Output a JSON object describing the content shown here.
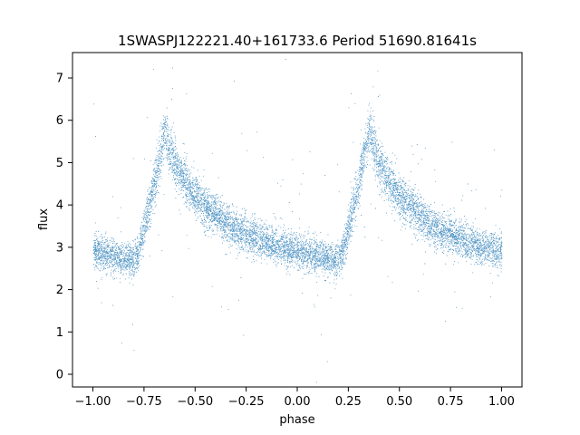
{
  "chart_data": {
    "type": "scatter",
    "title": "1SWASPJ122221.40+161733.6 Period 51690.81641s",
    "xlabel": "phase",
    "ylabel": "flux",
    "xlim": [
      -1.1,
      1.1
    ],
    "ylim": [
      -0.3,
      7.6
    ],
    "xticks": [
      -1.0,
      -0.75,
      -0.5,
      -0.25,
      0.0,
      0.25,
      0.5,
      0.75,
      1.0
    ],
    "xtick_labels": [
      "−1.00",
      "−0.75",
      "−0.50",
      "−0.25",
      "0.00",
      "0.25",
      "0.50",
      "0.75",
      "1.00"
    ],
    "yticks": [
      0,
      1,
      2,
      3,
      4,
      5,
      6,
      7
    ],
    "ytick_labels": [
      "0",
      "1",
      "2",
      "3",
      "4",
      "5",
      "6",
      "7"
    ],
    "grid": false,
    "point_color": "#1f77b4",
    "profile": {
      "phase": [
        0.0,
        0.05,
        0.1,
        0.15,
        0.2,
        0.22,
        0.25,
        0.3,
        0.33,
        0.35,
        0.4,
        0.45,
        0.5,
        0.55,
        0.6,
        0.65,
        0.7,
        0.75,
        0.8,
        0.85,
        0.9,
        0.95,
        1.0
      ],
      "flux": [
        2.9,
        2.85,
        2.78,
        2.72,
        2.7,
        2.9,
        3.5,
        4.5,
        5.3,
        5.7,
        5.0,
        4.5,
        4.2,
        3.95,
        3.75,
        3.55,
        3.4,
        3.3,
        3.2,
        3.1,
        3.0,
        2.95,
        2.9
      ]
    },
    "scatter_sigma": 0.28,
    "outlier_fraction": 0.02,
    "n_points": 9000
  }
}
